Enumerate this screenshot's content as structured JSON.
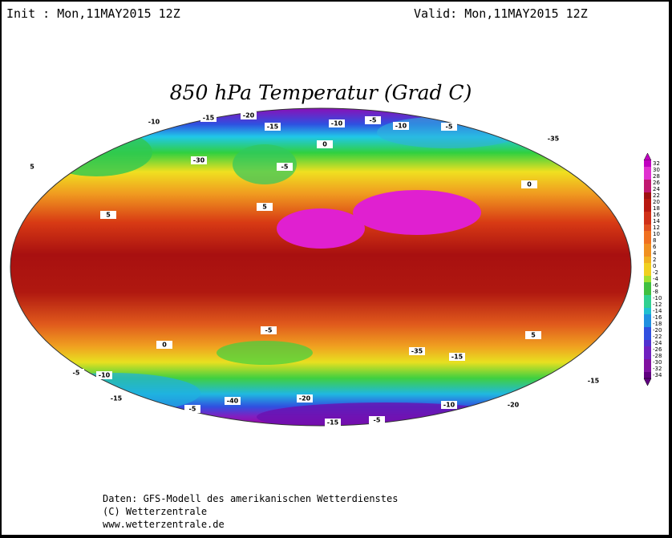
{
  "header": {
    "init": "Init : Mon,11MAY2015 12Z",
    "valid": "Valid: Mon,11MAY2015 12Z"
  },
  "title": "850 hPa Temperatur (Grad C)",
  "colorbar": {
    "labels": [
      32,
      30,
      28,
      26,
      24,
      22,
      20,
      18,
      16,
      14,
      12,
      10,
      8,
      6,
      4,
      2,
      0,
      -2,
      -4,
      -6,
      -8,
      -10,
      -12,
      -14,
      -16,
      -18,
      -20,
      -22,
      -24,
      -26,
      -28,
      -30,
      -32,
      -34
    ]
  },
  "contour_labels": [
    "-10",
    "-15",
    "-20",
    "-15",
    "-10",
    "-5",
    "-10",
    "-5",
    "0",
    "-5",
    "0",
    "5",
    "5",
    "5",
    "0",
    "-5",
    "-10",
    "-15",
    "-20",
    "-15",
    "-5",
    "-10",
    "-20",
    "-40",
    "-35",
    "-30",
    "-35",
    "-15",
    "-15",
    "-5",
    "-5",
    "5"
  ],
  "footer": [
    "Daten: GFS-Modell des amerikanischen Wetterdienstes",
    "(C) Wetterzentrale",
    "www.wetterzentrale.de"
  ]
}
